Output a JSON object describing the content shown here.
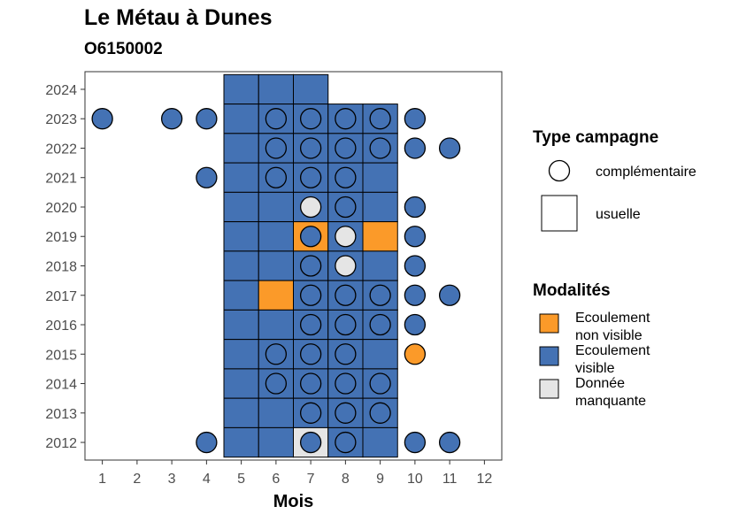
{
  "chart_data": {
    "type": "heatmap",
    "title": "Le Métau à Dunes",
    "subtitle": "O6150002",
    "xlabel": "Mois",
    "ylabel": "",
    "x_ticks": [
      1,
      2,
      3,
      4,
      5,
      6,
      7,
      8,
      9,
      10,
      11,
      12
    ],
    "y_ticks": [
      2012,
      2013,
      2014,
      2015,
      2016,
      2017,
      2018,
      2019,
      2020,
      2021,
      2022,
      2023,
      2024
    ],
    "xlim": [
      0.5,
      12.5
    ],
    "ylim": [
      2011.4,
      2024.6
    ],
    "colors": {
      "Ecoulement non visible": "#FB9A29",
      "Ecoulement visible": "#4472B4",
      "Donnée manquante": "#E5E5E5"
    },
    "grid": false,
    "legend_position": "right",
    "usuelle_tiles": [
      {
        "year": 2024,
        "month": 5,
        "modalite": "Ecoulement visible"
      },
      {
        "year": 2024,
        "month": 6,
        "modalite": "Ecoulement visible"
      },
      {
        "year": 2024,
        "month": 7,
        "modalite": "Ecoulement visible"
      },
      {
        "year": 2023,
        "month": 5,
        "modalite": "Ecoulement visible"
      },
      {
        "year": 2023,
        "month": 6,
        "modalite": "Ecoulement visible"
      },
      {
        "year": 2023,
        "month": 7,
        "modalite": "Ecoulement visible"
      },
      {
        "year": 2023,
        "month": 8,
        "modalite": "Ecoulement visible"
      },
      {
        "year": 2023,
        "month": 9,
        "modalite": "Ecoulement visible"
      },
      {
        "year": 2022,
        "month": 5,
        "modalite": "Ecoulement visible"
      },
      {
        "year": 2022,
        "month": 6,
        "modalite": "Ecoulement visible"
      },
      {
        "year": 2022,
        "month": 7,
        "modalite": "Ecoulement visible"
      },
      {
        "year": 2022,
        "month": 8,
        "modalite": "Ecoulement visible"
      },
      {
        "year": 2022,
        "month": 9,
        "modalite": "Ecoulement visible"
      },
      {
        "year": 2021,
        "month": 5,
        "modalite": "Ecoulement visible"
      },
      {
        "year": 2021,
        "month": 6,
        "modalite": "Ecoulement visible"
      },
      {
        "year": 2021,
        "month": 7,
        "modalite": "Ecoulement visible"
      },
      {
        "year": 2021,
        "month": 8,
        "modalite": "Ecoulement visible"
      },
      {
        "year": 2021,
        "month": 9,
        "modalite": "Ecoulement visible"
      },
      {
        "year": 2020,
        "month": 5,
        "modalite": "Ecoulement visible"
      },
      {
        "year": 2020,
        "month": 6,
        "modalite": "Ecoulement visible"
      },
      {
        "year": 2020,
        "month": 7,
        "modalite": "Ecoulement visible"
      },
      {
        "year": 2020,
        "month": 8,
        "modalite": "Ecoulement visible"
      },
      {
        "year": 2020,
        "month": 9,
        "modalite": "Ecoulement visible"
      },
      {
        "year": 2019,
        "month": 5,
        "modalite": "Ecoulement visible"
      },
      {
        "year": 2019,
        "month": 6,
        "modalite": "Ecoulement visible"
      },
      {
        "year": 2019,
        "month": 7,
        "modalite": "Ecoulement non visible"
      },
      {
        "year": 2019,
        "month": 8,
        "modalite": "Ecoulement visible"
      },
      {
        "year": 2019,
        "month": 9,
        "modalite": "Ecoulement non visible"
      },
      {
        "year": 2018,
        "month": 5,
        "modalite": "Ecoulement visible"
      },
      {
        "year": 2018,
        "month": 6,
        "modalite": "Ecoulement visible"
      },
      {
        "year": 2018,
        "month": 7,
        "modalite": "Ecoulement visible"
      },
      {
        "year": 2018,
        "month": 8,
        "modalite": "Ecoulement visible"
      },
      {
        "year": 2018,
        "month": 9,
        "modalite": "Ecoulement visible"
      },
      {
        "year": 2017,
        "month": 5,
        "modalite": "Ecoulement visible"
      },
      {
        "year": 2017,
        "month": 6,
        "modalite": "Ecoulement non visible"
      },
      {
        "year": 2017,
        "month": 7,
        "modalite": "Ecoulement visible"
      },
      {
        "year": 2017,
        "month": 8,
        "modalite": "Ecoulement visible"
      },
      {
        "year": 2017,
        "month": 9,
        "modalite": "Ecoulement visible"
      },
      {
        "year": 2016,
        "month": 5,
        "modalite": "Ecoulement visible"
      },
      {
        "year": 2016,
        "month": 6,
        "modalite": "Ecoulement visible"
      },
      {
        "year": 2016,
        "month": 7,
        "modalite": "Ecoulement visible"
      },
      {
        "year": 2016,
        "month": 8,
        "modalite": "Ecoulement visible"
      },
      {
        "year": 2016,
        "month": 9,
        "modalite": "Ecoulement visible"
      },
      {
        "year": 2015,
        "month": 5,
        "modalite": "Ecoulement visible"
      },
      {
        "year": 2015,
        "month": 6,
        "modalite": "Ecoulement visible"
      },
      {
        "year": 2015,
        "month": 7,
        "modalite": "Ecoulement visible"
      },
      {
        "year": 2015,
        "month": 8,
        "modalite": "Ecoulement visible"
      },
      {
        "year": 2015,
        "month": 9,
        "modalite": "Ecoulement visible"
      },
      {
        "year": 2014,
        "month": 5,
        "modalite": "Ecoulement visible"
      },
      {
        "year": 2014,
        "month": 6,
        "modalite": "Ecoulement visible"
      },
      {
        "year": 2014,
        "month": 7,
        "modalite": "Ecoulement visible"
      },
      {
        "year": 2014,
        "month": 8,
        "modalite": "Ecoulement visible"
      },
      {
        "year": 2014,
        "month": 9,
        "modalite": "Ecoulement visible"
      },
      {
        "year": 2013,
        "month": 5,
        "modalite": "Ecoulement visible"
      },
      {
        "year": 2013,
        "month": 6,
        "modalite": "Ecoulement visible"
      },
      {
        "year": 2013,
        "month": 7,
        "modalite": "Ecoulement visible"
      },
      {
        "year": 2013,
        "month": 8,
        "modalite": "Ecoulement visible"
      },
      {
        "year": 2013,
        "month": 9,
        "modalite": "Ecoulement visible"
      },
      {
        "year": 2012,
        "month": 5,
        "modalite": "Ecoulement visible"
      },
      {
        "year": 2012,
        "month": 6,
        "modalite": "Ecoulement visible"
      },
      {
        "year": 2012,
        "month": 7,
        "modalite": "Donnée manquante"
      },
      {
        "year": 2012,
        "month": 8,
        "modalite": "Ecoulement visible"
      },
      {
        "year": 2012,
        "month": 9,
        "modalite": "Ecoulement visible"
      }
    ],
    "complementaire_points": [
      {
        "year": 2023,
        "month": 1,
        "modalite": "Ecoulement visible"
      },
      {
        "year": 2023,
        "month": 3,
        "modalite": "Ecoulement visible"
      },
      {
        "year": 2023,
        "month": 4,
        "modalite": "Ecoulement visible"
      },
      {
        "year": 2023,
        "month": 6,
        "modalite": "Ecoulement visible"
      },
      {
        "year": 2023,
        "month": 7,
        "modalite": "Ecoulement visible"
      },
      {
        "year": 2023,
        "month": 8,
        "modalite": "Ecoulement visible"
      },
      {
        "year": 2023,
        "month": 9,
        "modalite": "Ecoulement visible"
      },
      {
        "year": 2023,
        "month": 10,
        "modalite": "Ecoulement visible"
      },
      {
        "year": 2022,
        "month": 6,
        "modalite": "Ecoulement visible"
      },
      {
        "year": 2022,
        "month": 7,
        "modalite": "Ecoulement visible"
      },
      {
        "year": 2022,
        "month": 8,
        "modalite": "Ecoulement visible"
      },
      {
        "year": 2022,
        "month": 9,
        "modalite": "Ecoulement visible"
      },
      {
        "year": 2022,
        "month": 10,
        "modalite": "Ecoulement visible"
      },
      {
        "year": 2022,
        "month": 11,
        "modalite": "Ecoulement visible"
      },
      {
        "year": 2021,
        "month": 4,
        "modalite": "Ecoulement visible"
      },
      {
        "year": 2021,
        "month": 6,
        "modalite": "Ecoulement visible"
      },
      {
        "year": 2021,
        "month": 7,
        "modalite": "Ecoulement visible"
      },
      {
        "year": 2021,
        "month": 8,
        "modalite": "Ecoulement visible"
      },
      {
        "year": 2020,
        "month": 7,
        "modalite": "Donnée manquante"
      },
      {
        "year": 2020,
        "month": 8,
        "modalite": "Ecoulement visible"
      },
      {
        "year": 2020,
        "month": 10,
        "modalite": "Ecoulement visible"
      },
      {
        "year": 2019,
        "month": 7,
        "modalite": "Ecoulement visible"
      },
      {
        "year": 2019,
        "month": 8,
        "modalite": "Donnée manquante"
      },
      {
        "year": 2019,
        "month": 10,
        "modalite": "Ecoulement visible"
      },
      {
        "year": 2018,
        "month": 7,
        "modalite": "Ecoulement visible"
      },
      {
        "year": 2018,
        "month": 8,
        "modalite": "Donnée manquante"
      },
      {
        "year": 2018,
        "month": 10,
        "modalite": "Ecoulement visible"
      },
      {
        "year": 2017,
        "month": 7,
        "modalite": "Ecoulement visible"
      },
      {
        "year": 2017,
        "month": 8,
        "modalite": "Ecoulement visible"
      },
      {
        "year": 2017,
        "month": 9,
        "modalite": "Ecoulement visible"
      },
      {
        "year": 2017,
        "month": 10,
        "modalite": "Ecoulement visible"
      },
      {
        "year": 2017,
        "month": 11,
        "modalite": "Ecoulement visible"
      },
      {
        "year": 2016,
        "month": 7,
        "modalite": "Ecoulement visible"
      },
      {
        "year": 2016,
        "month": 8,
        "modalite": "Ecoulement visible"
      },
      {
        "year": 2016,
        "month": 9,
        "modalite": "Ecoulement visible"
      },
      {
        "year": 2016,
        "month": 10,
        "modalite": "Ecoulement visible"
      },
      {
        "year": 2015,
        "month": 6,
        "modalite": "Ecoulement visible"
      },
      {
        "year": 2015,
        "month": 7,
        "modalite": "Ecoulement visible"
      },
      {
        "year": 2015,
        "month": 8,
        "modalite": "Ecoulement visible"
      },
      {
        "year": 2015,
        "month": 10,
        "modalite": "Ecoulement non visible"
      },
      {
        "year": 2014,
        "month": 6,
        "modalite": "Ecoulement visible"
      },
      {
        "year": 2014,
        "month": 7,
        "modalite": "Ecoulement visible"
      },
      {
        "year": 2014,
        "month": 8,
        "modalite": "Ecoulement visible"
      },
      {
        "year": 2014,
        "month": 9,
        "modalite": "Ecoulement visible"
      },
      {
        "year": 2013,
        "month": 7,
        "modalite": "Ecoulement visible"
      },
      {
        "year": 2013,
        "month": 8,
        "modalite": "Ecoulement visible"
      },
      {
        "year": 2013,
        "month": 9,
        "modalite": "Ecoulement visible"
      },
      {
        "year": 2012,
        "month": 4,
        "modalite": "Ecoulement visible"
      },
      {
        "year": 2012,
        "month": 7,
        "modalite": "Ecoulement visible"
      },
      {
        "year": 2012,
        "month": 8,
        "modalite": "Ecoulement visible"
      },
      {
        "year": 2012,
        "month": 10,
        "modalite": "Ecoulement visible"
      },
      {
        "year": 2012,
        "month": 11,
        "modalite": "Ecoulement visible"
      }
    ],
    "legend": {
      "type_title": "Type campagne",
      "type_items": [
        {
          "shape": "circle",
          "label": "complémentaire"
        },
        {
          "shape": "square",
          "label": "usuelle"
        }
      ],
      "modalite_title": "Modalités",
      "modalite_items": [
        {
          "key": "Ecoulement non visible",
          "lines": [
            "Ecoulement",
            "non visible"
          ]
        },
        {
          "key": "Ecoulement visible",
          "lines": [
            "Ecoulement",
            "visible"
          ]
        },
        {
          "key": "Donnée manquante",
          "lines": [
            "Donnée",
            "manquante"
          ]
        }
      ]
    }
  }
}
